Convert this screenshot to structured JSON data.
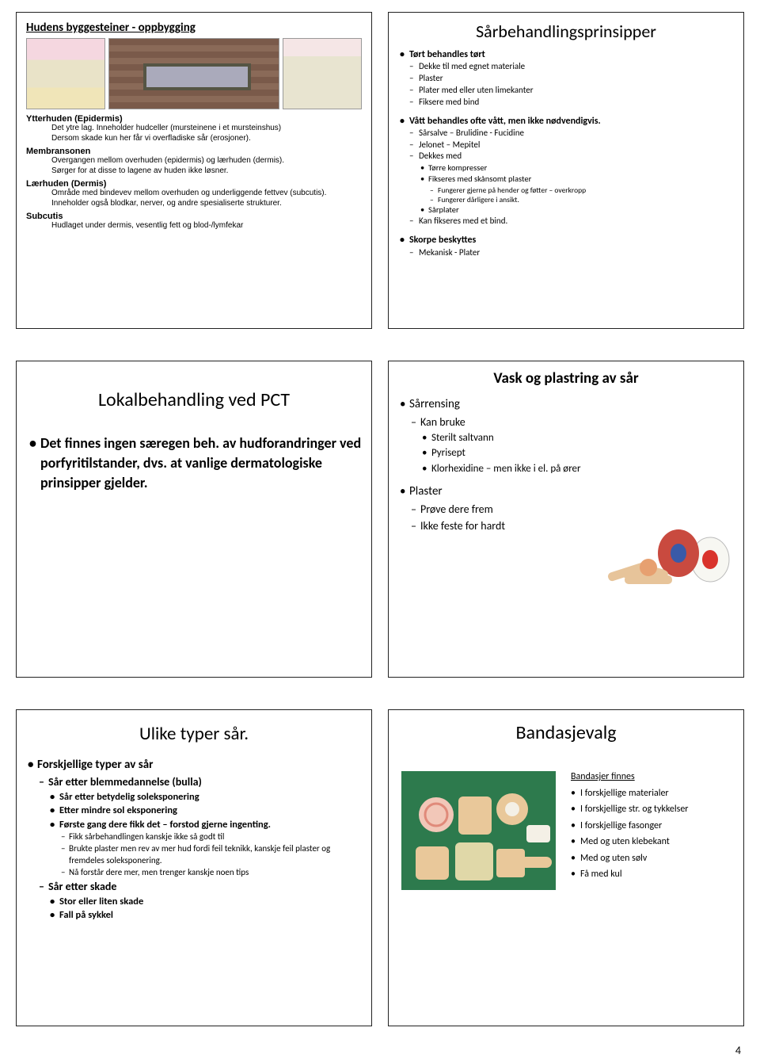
{
  "page_number": "4",
  "slide1": {
    "title": "Hudens byggesteiner - oppbygging",
    "defs": [
      {
        "head": "Ytterhuden (Epidermis)",
        "lines": [
          "Det ytre lag. Inneholder hudceller (mursteinene i et mursteinshus)",
          "Dersom skade kun her får vi overfladiske sår (erosjoner)."
        ]
      },
      {
        "head": "Membransonen",
        "lines": [
          "Overgangen mellom overhuden (epidermis) og lærhuden (dermis).",
          "Sørger for at disse to lagene av huden ikke løsner."
        ]
      },
      {
        "head": "Lærhuden (Dermis)",
        "lines": [
          "Område med bindevev mellom overhuden og underliggende fettvev (subcutis).",
          "Inneholder også blodkar, nerver, og andre spesialiserte strukturer."
        ]
      },
      {
        "head": "Subcutis",
        "lines": [
          "Hudlaget under dermis, vesentlig fett og blod-/lymfekar"
        ]
      }
    ]
  },
  "slide2": {
    "title": "Sårbehandlingsprinsipper",
    "items": [
      {
        "lvl": "b1",
        "bold": true,
        "t": "Tørt behandles tørt"
      },
      {
        "lvl": "d1",
        "t": "Dekke til med egnet materiale"
      },
      {
        "lvl": "d1",
        "t": "Plaster"
      },
      {
        "lvl": "d1",
        "t": "Plater med eller uten limekanter"
      },
      {
        "lvl": "d1",
        "t": "Fiksere med bind"
      },
      {
        "lvl": "sp"
      },
      {
        "lvl": "b1",
        "bold": true,
        "t": "Vått behandles ofte vått, men ikke nødvendigvis."
      },
      {
        "lvl": "d1",
        "t": "Sårsalve – Brulidine - Fucidine"
      },
      {
        "lvl": "d1",
        "t": "Jelonet – Mepitel"
      },
      {
        "lvl": "d1",
        "t": "Dekkes med"
      },
      {
        "lvl": "b2",
        "t": "Tørre kompresser"
      },
      {
        "lvl": "b2",
        "t": "Fikseres med skånsomt plaster"
      },
      {
        "lvl": "d2",
        "t": "Fungerer gjerne på hender og føtter – overkropp"
      },
      {
        "lvl": "d2",
        "t": "Fungerer dårligere i ansikt."
      },
      {
        "lvl": "b2",
        "t": "Sårplater"
      },
      {
        "lvl": "d1",
        "t": "Kan fikseres med et bind."
      },
      {
        "lvl": "sp"
      },
      {
        "lvl": "b1",
        "bold": true,
        "t": "Skorpe beskyttes"
      },
      {
        "lvl": "d1",
        "t": "Mekanisk - Plater"
      }
    ]
  },
  "slide3": {
    "title": "Lokalbehandling ved PCT",
    "text": "Det finnes ingen særegen beh. av hudforandringer ved porfyritilstander, dvs. at vanlige dermatologiske prinsipper gjelder."
  },
  "slide4": {
    "title": "Vask og plastring av sår",
    "items": [
      {
        "lvl": "s4-b1",
        "t": "Sårrensing"
      },
      {
        "lvl": "s4-d1",
        "t": "Kan bruke"
      },
      {
        "lvl": "s4-b2",
        "t": "Sterilt saltvann"
      },
      {
        "lvl": "s4-b2",
        "t": "Pyrisept"
      },
      {
        "lvl": "s4-b2",
        "t": "Klorhexidine – men ikke i el. på ører"
      },
      {
        "lvl": "sp"
      },
      {
        "lvl": "s4-b1",
        "t": "Plaster"
      },
      {
        "lvl": "s4-d1",
        "t": "Prøve dere frem"
      },
      {
        "lvl": "s4-d1",
        "t": "Ikke feste for hardt"
      }
    ],
    "img_colors": {
      "tape1": "#c94a3f",
      "tape1c": "#3a5aa8",
      "tape2": "#f7f7f2",
      "tape2c": "#d9332b",
      "bandaid": "#e7c49a"
    }
  },
  "slide5": {
    "title": "Ulike typer sår.",
    "items": [
      {
        "lvl": "s5-b1",
        "t": "Forskjellige typer av sår"
      },
      {
        "lvl": "s5-d1",
        "t": "Sår etter blemmedannelse (bulla)"
      },
      {
        "lvl": "s5-b2",
        "t": "Sår etter betydelig soleksponering"
      },
      {
        "lvl": "s5-b2",
        "t": "Etter mindre sol eksponering"
      },
      {
        "lvl": "s5-b2",
        "t": "Første gang dere fikk det – forstod gjerne ingenting."
      },
      {
        "lvl": "s5-d2",
        "t": "Fikk sårbehandlingen kanskje ikke så godt til"
      },
      {
        "lvl": "s5-d2",
        "t": "Brukte plaster men rev av mer hud fordi feil teknikk, kanskje feil plaster og fremdeles soleksponering."
      },
      {
        "lvl": "s5-d2",
        "t": "Nå forstår dere mer, men trenger kanskje noen tips"
      },
      {
        "lvl": "s5-d1",
        "t": "Sår etter skade"
      },
      {
        "lvl": "s5-b2",
        "t": "Stor eller liten skade"
      },
      {
        "lvl": "s5-b2",
        "t": "Fall på sykkel"
      }
    ]
  },
  "slide6": {
    "title": "Bandasjevalg",
    "intro": "Bandasjer finnes",
    "items": [
      "I forskjellige materialer",
      "I forskjellige str. og tykkelser",
      "I forskjellige  fasonger",
      "Med og uten klebekant",
      "Med og uten sølv",
      "Få med kul"
    ],
    "img_bg": "#2d7a4d",
    "patch_color": "#e9c89a"
  }
}
